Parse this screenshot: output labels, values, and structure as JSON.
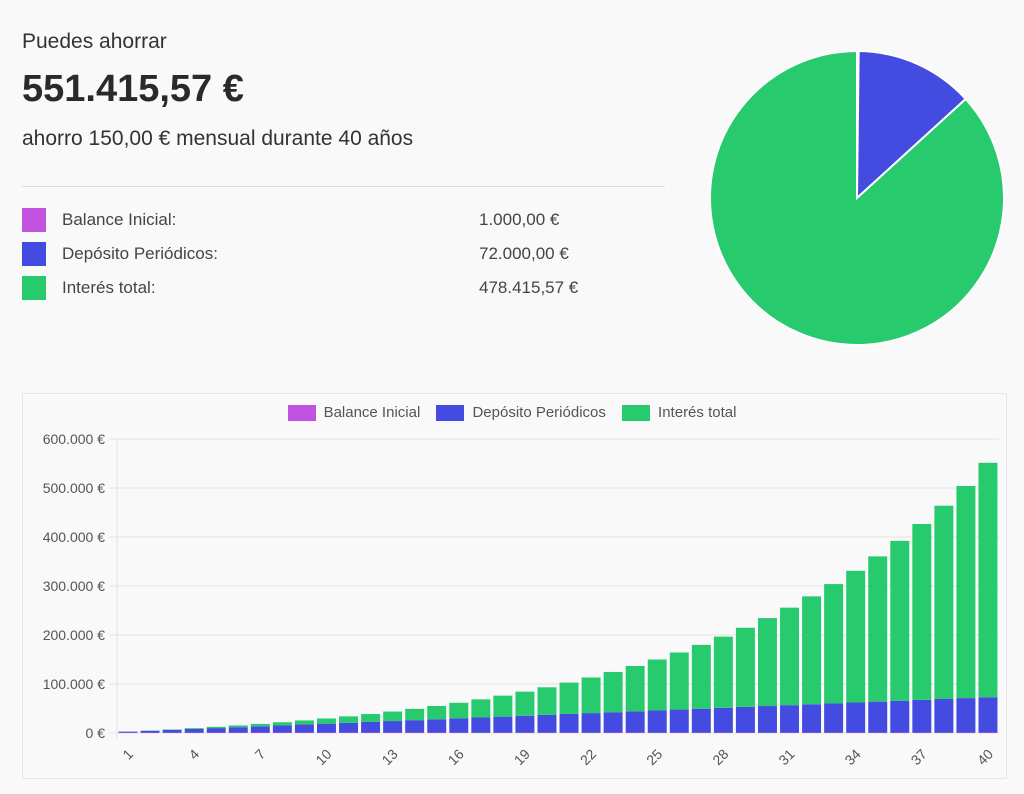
{
  "summary": {
    "label": "Puedes ahorrar",
    "amount": "551.415,57 €",
    "description": "ahorro 150,00 € mensual durante 40 años"
  },
  "breakdown": [
    {
      "label": "Balance Inicial:",
      "value": "1.000,00 €",
      "color": "#c153e0"
    },
    {
      "label": "Depósito Periódicos:",
      "value": "72.000,00 €",
      "color": "#434be0"
    },
    {
      "label": "Interés total:",
      "value": "478.415,57 €",
      "color": "#27cb6e"
    }
  ],
  "pie_chart": {
    "type": "pie",
    "values": [
      1000.0,
      72000.0,
      478415.57
    ]
  },
  "chart_data": {
    "type": "bar",
    "stacked": true,
    "legend_position": "top",
    "grid": true,
    "ylim": [
      0,
      600000
    ],
    "yticks": [
      "0 €",
      "100.000 €",
      "200.000 €",
      "300.000 €",
      "400.000 €",
      "500.000 €",
      "600.000 €"
    ],
    "categories": [
      1,
      2,
      3,
      4,
      5,
      6,
      7,
      8,
      9,
      10,
      11,
      12,
      13,
      14,
      15,
      16,
      17,
      18,
      19,
      20,
      21,
      22,
      23,
      24,
      25,
      26,
      27,
      28,
      29,
      30,
      31,
      32,
      33,
      34,
      35,
      36,
      37,
      38,
      39,
      40
    ],
    "xtick_labels": [
      "1",
      "4",
      "7",
      "10",
      "13",
      "16",
      "19",
      "22",
      "25",
      "28",
      "31",
      "34",
      "37",
      "40"
    ],
    "series": [
      {
        "name": "Balance Inicial",
        "color": "#c153e0",
        "values": [
          1000,
          1000,
          1000,
          1000,
          1000,
          1000,
          1000,
          1000,
          1000,
          1000,
          1000,
          1000,
          1000,
          1000,
          1000,
          1000,
          1000,
          1000,
          1000,
          1000,
          1000,
          1000,
          1000,
          1000,
          1000,
          1000,
          1000,
          1000,
          1000,
          1000,
          1000,
          1000,
          1000,
          1000,
          1000,
          1000,
          1000,
          1000,
          1000,
          1000
        ]
      },
      {
        "name": "Depósito Periódicos",
        "color": "#434be0",
        "values": [
          1800,
          3600,
          5400,
          7200,
          9000,
          10800,
          12600,
          14400,
          16200,
          18000,
          19800,
          21600,
          23400,
          25200,
          27000,
          28800,
          30600,
          32400,
          34200,
          36000,
          37800,
          39600,
          41400,
          43200,
          45000,
          46800,
          48600,
          50400,
          52200,
          54000,
          55800,
          57600,
          59400,
          61200,
          63000,
          64800,
          66600,
          68400,
          70200,
          72000
        ]
      },
      {
        "name": "Interés total",
        "color": "#27cb6e",
        "values": [
          151,
          463,
          951,
          1628,
          2511,
          3617,
          4965,
          6573,
          8464,
          10662,
          13191,
          16080,
          19358,
          23057,
          27213,
          31863,
          37049,
          42814,
          49208,
          56281,
          64091,
          72698,
          82169,
          92576,
          103996,
          116513,
          130219,
          145211,
          161598,
          179493,
          199024,
          220325,
          243543,
          268837,
          296381,
          326360,
          358977,
          394450,
          433017,
          478416
        ]
      }
    ]
  }
}
